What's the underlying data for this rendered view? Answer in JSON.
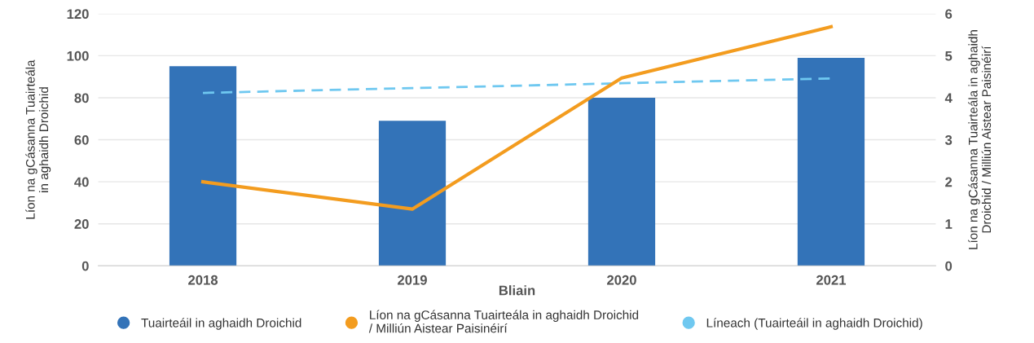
{
  "chart_data": {
    "type": "bar",
    "xlabel": "Bliain",
    "ylabel": "Líon na gCásanna Tuairteála\nin aghaidh Droichid",
    "y2label": "Líon na gCásanna Tuairteála in aghaidh\nDroichid / Milliún Aistear Paisinéirí",
    "categories": [
      "2018",
      "2019",
      "2020",
      "2021"
    ],
    "series": [
      {
        "name": "Tuairteáil in aghaidh Droichid",
        "color": "#3373b8",
        "values": [
          95,
          69,
          80,
          99
        ]
      },
      {
        "name": "Líon na gCásanna Tuairteála in aghaidh Droichid / Milliún Aistear Paisinéirí",
        "type": "line",
        "axis": "y2",
        "color": "#f39c1f",
        "line_style": "solid",
        "values": [
          2.0,
          1.35,
          4.47,
          5.69
        ]
      },
      {
        "name": "Líneach (Tuairteáil in aghaidh Droichid)",
        "type": "line",
        "color": "#6fc8f0",
        "line_style": "dashed",
        "values": [
          82.3,
          84.6,
          86.9,
          89.2
        ]
      }
    ],
    "ylim": [
      0,
      120
    ],
    "yticks": [
      0,
      20,
      40,
      60,
      80,
      100,
      120
    ],
    "y2lim": [
      0,
      6
    ],
    "y2ticks": [
      0,
      1,
      2,
      3,
      4,
      5,
      6
    ],
    "grid": "y",
    "legend": "bottom",
    "marker": "none"
  }
}
